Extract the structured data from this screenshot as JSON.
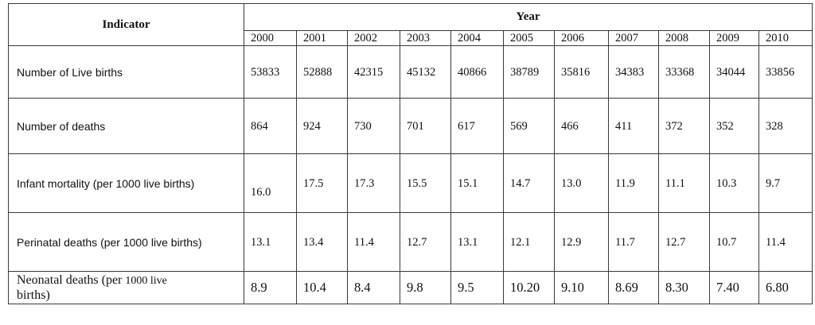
{
  "table": {
    "indicator_header": "Indicator",
    "year_header": "Year",
    "years": [
      "2000",
      "2001",
      "2002",
      "2003",
      "2004",
      "2005",
      "2006",
      "2007",
      "2008",
      "2009",
      "2010"
    ],
    "rows": [
      {
        "indicator": "Number of Live births",
        "values": [
          "53833",
          "52888",
          "42315",
          "45132",
          "40866",
          "38789",
          "35816",
          "34383",
          "33368",
          "34044",
          "33856"
        ]
      },
      {
        "indicator": "Number of deaths",
        "values": [
          "864",
          "924",
          "730",
          "701",
          "617",
          "569",
          "466",
          "411",
          "372",
          "352",
          "328"
        ]
      },
      {
        "indicator": "Infant mortality  (per 1000 live births)",
        "values": [
          "16.0",
          "17.5",
          "17.3",
          "15.5",
          "15.1",
          "14.7",
          "13.0",
          "11.9",
          "11.1",
          "10.3",
          "9.7"
        ]
      },
      {
        "indicator": "Perinatal deaths (per 1000 live births)",
        "values": [
          "13.1",
          "13.4",
          "11.4",
          "12.7",
          "13.1",
          "12.1",
          "12.9",
          "11.7",
          "12.7",
          "10.7",
          "11.4"
        ]
      },
      {
        "indicator_main": "Neonatal deaths (per ",
        "indicator_small": "1000 live",
        "indicator_tail": "births)",
        "values": [
          "8.9",
          "10.4",
          "8.4",
          "9.8",
          "9.5",
          "10.20",
          "9.10",
          "8.69",
          "8.30",
          "7.40",
          "6.80"
        ]
      }
    ]
  }
}
